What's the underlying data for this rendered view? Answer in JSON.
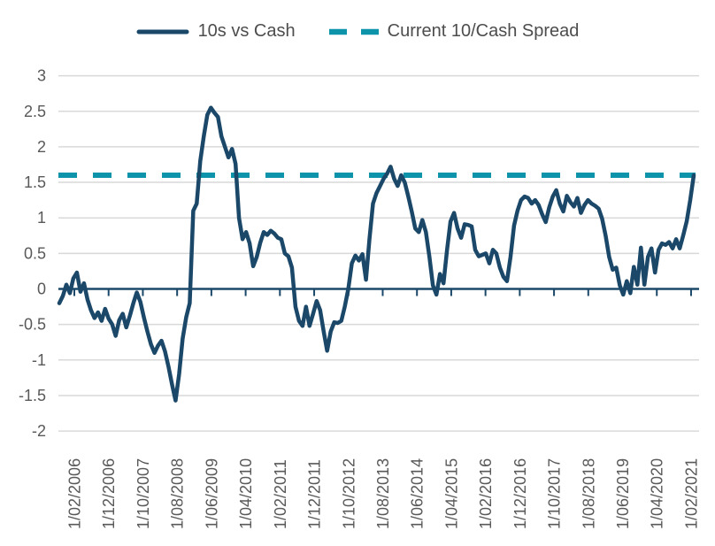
{
  "legend": {
    "series1_label": "10s vs Cash",
    "series2_label": "Current 10/Cash Spread"
  },
  "colors": {
    "line": "#1b4869",
    "dashed": "#0d94aa",
    "gridline": "#d9d9d9",
    "axis_text": "#595959",
    "legend_text": "#4d4d4d"
  },
  "chart_data": {
    "type": "line",
    "title": "",
    "xlabel": "",
    "ylabel": "",
    "ylim": [
      -2,
      3
    ],
    "grid": "horizontal",
    "legend_position": "top",
    "y_ticks": [
      3,
      2.5,
      2,
      1.5,
      1,
      0.5,
      0,
      -0.5,
      -1,
      -1.5,
      -2
    ],
    "y_tick_labels": [
      "3",
      "2.5",
      "2",
      "1.5",
      "1",
      "0.5",
      "0",
      "-0.5",
      "-1",
      "-1.5",
      "-2"
    ],
    "x_tick_labels": [
      "1/02/2006",
      "1/12/2006",
      "1/10/2007",
      "1/08/2008",
      "1/06/2009",
      "1/04/2010",
      "1/02/2011",
      "1/12/2011",
      "1/10/2012",
      "1/08/2013",
      "1/06/2014",
      "1/04/2015",
      "1/02/2016",
      "1/12/2016",
      "1/10/2017",
      "1/08/2018",
      "1/06/2019",
      "1/04/2020",
      "1/02/2021"
    ],
    "series": [
      {
        "name": "10s vs Cash",
        "style": "solid",
        "x_start": "1/02/2006",
        "x_end": "1/02/2021",
        "frequency": "monthly",
        "values": [
          -0.2,
          -0.1,
          0.06,
          -0.06,
          0.15,
          0.23,
          -0.04,
          0.08,
          -0.15,
          -0.3,
          -0.41,
          -0.33,
          -0.45,
          -0.28,
          -0.42,
          -0.5,
          -0.66,
          -0.44,
          -0.35,
          -0.54,
          -0.38,
          -0.2,
          -0.05,
          -0.18,
          -0.4,
          -0.6,
          -0.78,
          -0.9,
          -0.8,
          -0.73,
          -0.88,
          -1.1,
          -1.35,
          -1.57,
          -1.2,
          -0.7,
          -0.4,
          -0.2,
          1.1,
          1.2,
          1.8,
          2.15,
          2.45,
          2.55,
          2.48,
          2.42,
          2.15,
          2.0,
          1.85,
          1.97,
          1.76,
          1.0,
          0.7,
          0.8,
          0.64,
          0.32,
          0.45,
          0.65,
          0.8,
          0.76,
          0.82,
          0.78,
          0.72,
          0.7,
          0.5,
          0.46,
          0.3,
          -0.25,
          -0.45,
          -0.52,
          -0.25,
          -0.52,
          -0.35,
          -0.17,
          -0.3,
          -0.6,
          -0.87,
          -0.6,
          -0.47,
          -0.48,
          -0.45,
          -0.25,
          0.0,
          0.36,
          0.47,
          0.4,
          0.49,
          0.13,
          0.7,
          1.2,
          1.35,
          1.45,
          1.55,
          1.62,
          1.72,
          1.55,
          1.45,
          1.6,
          1.5,
          1.3,
          1.09,
          0.85,
          0.8,
          0.97,
          0.8,
          0.45,
          0.05,
          -0.08,
          0.21,
          0.08,
          0.55,
          0.95,
          1.07,
          0.85,
          0.72,
          0.91,
          0.9,
          0.88,
          0.55,
          0.46,
          0.48,
          0.5,
          0.36,
          0.55,
          0.5,
          0.3,
          0.17,
          0.11,
          0.45,
          0.89,
          1.1,
          1.25,
          1.3,
          1.28,
          1.2,
          1.25,
          1.18,
          1.05,
          0.94,
          1.15,
          1.3,
          1.39,
          1.2,
          1.09,
          1.31,
          1.22,
          1.16,
          1.28,
          1.07,
          1.18,
          1.25,
          1.2,
          1.17,
          1.13,
          0.99,
          0.75,
          0.45,
          0.27,
          0.3,
          0.05,
          -0.08,
          0.11,
          -0.06,
          0.31,
          0.06,
          0.58,
          0.06,
          0.45,
          0.57,
          0.23,
          0.55,
          0.64,
          0.62,
          0.66,
          0.57,
          0.7,
          0.57,
          0.75,
          0.95,
          1.25,
          1.6
        ]
      },
      {
        "name": "Current 10/Cash Spread",
        "style": "dashed",
        "type": "horizontal-reference-line",
        "value": 1.6
      }
    ]
  }
}
